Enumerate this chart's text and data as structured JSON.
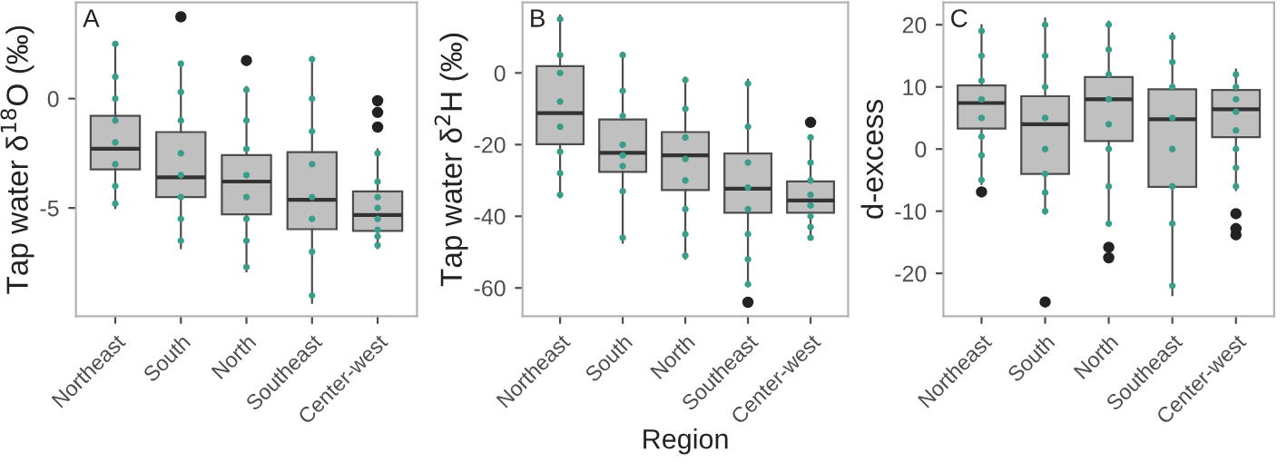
{
  "chart_data": [
    {
      "type": "box",
      "title": "A",
      "ylabel": "Tap water δ$^{18}$O (‰)",
      "categories": [
        "Northeast",
        "South",
        "North",
        "Southeast",
        "Center-west"
      ],
      "ylim": [
        -9.95,
        4.4
      ],
      "yticks": [
        -5,
        0
      ],
      "grid": false,
      "color": "#c0c0c0",
      "boxes": [
        {
          "low": -5.0,
          "q1": -3.24,
          "median": -2.29,
          "q3": -0.79,
          "high": 2.58
        },
        {
          "low": -6.84,
          "q1": -4.5,
          "median": -3.6,
          "q3": -1.53,
          "high": 1.58,
          "outliers": [
            3.74
          ]
        },
        {
          "low": -7.9,
          "q1": -5.29,
          "median": -3.79,
          "q3": -2.58,
          "high": 0.53,
          "outliers": [
            1.74
          ]
        },
        {
          "low": -9.34,
          "q1": -5.97,
          "median": -4.63,
          "q3": -2.45,
          "high": 1.84
        },
        {
          "low": -6.84,
          "q1": -6.05,
          "median": -5.32,
          "q3": -4.24,
          "high": -2.32,
          "outliers": [
            -0.1,
            -0.63,
            -1.3
          ]
        }
      ],
      "series": [
        {
          "type": "scatter",
          "color": "#3a9d8a",
          "x": [
            "Northeast",
            "Northeast",
            "Northeast",
            "Northeast",
            "Northeast",
            "Northeast",
            "Northeast",
            "Northeast",
            "South",
            "South",
            "South",
            "South",
            "South",
            "South",
            "South",
            "South",
            "North",
            "North",
            "North",
            "North",
            "North",
            "North",
            "North",
            "North",
            "Southeast",
            "Southeast",
            "Southeast",
            "Southeast",
            "Southeast",
            "Southeast",
            "Southeast",
            "Southeast",
            "Center-west",
            "Center-west",
            "Center-west",
            "Center-west",
            "Center-west",
            "Center-west",
            "Center-west",
            "Center-west"
          ],
          "values": [
            2.5,
            1.0,
            0,
            -1,
            -2,
            -3,
            -4,
            -4.8,
            1.6,
            0.3,
            -1,
            -2.5,
            -3.5,
            -4.5,
            -5.5,
            -6.5,
            0.4,
            -1,
            -2.3,
            -3.5,
            -4.5,
            -5.5,
            -6.5,
            -7.7,
            1.8,
            0,
            -1.5,
            -3,
            -4.5,
            -5.5,
            -7,
            -9,
            -2.5,
            -3.8,
            -4.5,
            -5,
            -5.5,
            -6,
            -6.3,
            -6.7
          ]
        }
      ]
    },
    {
      "type": "box",
      "title": "B",
      "ylabel": "Tap water δ$^{2}$H (‰)",
      "xlabel": "Region",
      "categories": [
        "Northeast",
        "South",
        "North",
        "Southeast",
        "Center-west"
      ],
      "ylim": [
        -67.9,
        19.7
      ],
      "yticks": [
        -60,
        -40,
        -20,
        0
      ],
      "grid": false,
      "color": "#c0c0c0",
      "boxes": [
        {
          "low": -34.7,
          "q1": -19.9,
          "median": -11.2,
          "q3": 1.9,
          "high": 16
        },
        {
          "low": -47.4,
          "q1": -27.6,
          "median": -22.3,
          "q3": -13,
          "high": 5.6
        },
        {
          "low": -51.8,
          "q1": -32.7,
          "median": -23,
          "q3": -16.5,
          "high": -1.3
        },
        {
          "low": -59.5,
          "q1": -39,
          "median": -32.3,
          "q3": -22.5,
          "high": -1.9,
          "outliers": [
            -64
          ]
        },
        {
          "low": -46,
          "q1": -39,
          "median": -35.6,
          "q3": -30.3,
          "high": -18,
          "outliers": [
            -13.8
          ]
        }
      ],
      "series": [
        {
          "type": "scatter",
          "color": "#3a9d8a",
          "x": [
            "Northeast",
            "Northeast",
            "Northeast",
            "Northeast",
            "Northeast",
            "Northeast",
            "Northeast",
            "Northeast",
            "South",
            "South",
            "South",
            "South",
            "South",
            "South",
            "South",
            "South",
            "North",
            "North",
            "North",
            "North",
            "North",
            "North",
            "North",
            "North",
            "Southeast",
            "Southeast",
            "Southeast",
            "Southeast",
            "Southeast",
            "Southeast",
            "Southeast",
            "Southeast",
            "Center-west",
            "Center-west",
            "Center-west",
            "Center-west",
            "Center-west",
            "Center-west",
            "Center-west",
            "Center-west"
          ],
          "values": [
            15,
            5,
            0,
            -8,
            -15,
            -22,
            -28,
            -34,
            5,
            -5,
            -12,
            -20,
            -23,
            -26,
            -33,
            -46,
            -2,
            -10,
            -18,
            -24,
            -30,
            -38,
            -45,
            -51,
            -3,
            -15,
            -25,
            -32,
            -38,
            -45,
            -52,
            -59,
            -18,
            -25,
            -30,
            -34,
            -37,
            -40,
            -43,
            -46
          ]
        }
      ]
    },
    {
      "type": "box",
      "title": "C",
      "ylabel": "d-excess",
      "categories": [
        "Northeast",
        "South",
        "North",
        "Southeast",
        "Center-west"
      ],
      "ylim": [
        -26.9,
        23.6
      ],
      "yticks": [
        -20,
        -10,
        0,
        10,
        20
      ],
      "grid": false,
      "color": "#c0c0c0",
      "boxes": [
        {
          "low": -5.6,
          "q1": 3.3,
          "median": 7.4,
          "q3": 10.25,
          "high": 19.9,
          "outliers": [
            -6.9
          ]
        },
        {
          "low": -10.4,
          "q1": -4.0,
          "median": 4.0,
          "q3": 8.5,
          "high": 21,
          "outliers": [
            -24.6
          ]
        },
        {
          "low": -12.1,
          "q1": 1.3,
          "median": 8.0,
          "q3": 11.6,
          "high": 20.5,
          "outliers": [
            -15.8,
            -17.5
          ]
        },
        {
          "low": -23.5,
          "q1": -6.1,
          "median": 4.8,
          "q3": 9.6,
          "high": 18.6
        },
        {
          "low": -6.6,
          "q1": 1.9,
          "median": 6.4,
          "q3": 9.5,
          "high": 12.8,
          "outliers": [
            -10.4,
            -12.8,
            -13.8
          ]
        }
      ],
      "series": [
        {
          "type": "scatter",
          "color": "#3a9d8a",
          "x": [
            "Northeast",
            "Northeast",
            "Northeast",
            "Northeast",
            "Northeast",
            "Northeast",
            "Northeast",
            "Northeast",
            "South",
            "South",
            "South",
            "South",
            "South",
            "South",
            "South",
            "South",
            "North",
            "North",
            "North",
            "North",
            "North",
            "North",
            "North",
            "North",
            "Southeast",
            "Southeast",
            "Southeast",
            "Southeast",
            "Southeast",
            "Southeast",
            "Southeast",
            "Southeast",
            "Center-west",
            "Center-west",
            "Center-west",
            "Center-west",
            "Center-west",
            "Center-west",
            "Center-west",
            "Center-west"
          ],
          "values": [
            19,
            15,
            11,
            8,
            5,
            2,
            -1,
            -5,
            20,
            15,
            10,
            5,
            0,
            -4,
            -7,
            -10,
            20,
            16,
            12,
            8,
            4,
            0,
            -6,
            -12,
            18,
            14,
            10,
            5,
            0,
            -6,
            -12,
            -22,
            12,
            10,
            8,
            6,
            3,
            0,
            -3,
            -6
          ]
        }
      ]
    }
  ]
}
